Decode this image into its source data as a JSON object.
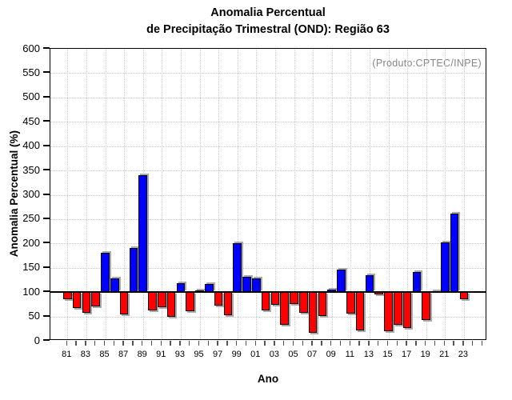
{
  "title": {
    "line1": "Anomalia Percentual",
    "line2": "de Precipitação Trimestral (OND): Região 63"
  },
  "chart_data": {
    "type": "bar",
    "title": "Anomalia Percentual de Precipitação Trimestral (OND): Região 63",
    "xlabel": "Ano",
    "ylabel": "Anomalia Percentual (%)",
    "annotation": "(Produto:CPTEC/INPE)",
    "ylim": [
      0,
      600
    ],
    "ytick_step": 50,
    "baseline": 100,
    "grid": "dotted gridlines at every 50 units and at labeled (odd) years",
    "legend": "none",
    "y_tick_labels": [
      "0",
      "50",
      "100",
      "150",
      "200",
      "250",
      "300",
      "350",
      "400",
      "450",
      "500",
      "550",
      "600"
    ],
    "x_tick_labels": [
      "81",
      "83",
      "85",
      "87",
      "89",
      "91",
      "93",
      "95",
      "97",
      "99",
      "01",
      "03",
      "05",
      "07",
      "09",
      "11",
      "13",
      "15",
      "17",
      "19",
      "21",
      "23"
    ],
    "years": [
      1981,
      1982,
      1983,
      1984,
      1985,
      1986,
      1987,
      1988,
      1989,
      1990,
      1991,
      1992,
      1993,
      1994,
      1995,
      1996,
      1997,
      1998,
      1999,
      2000,
      2001,
      2002,
      2003,
      2004,
      2005,
      2006,
      2007,
      2008,
      2009,
      2010,
      2011,
      2012,
      2013,
      2014,
      2015,
      2016,
      2017,
      2018,
      2019,
      2020,
      2021,
      2022,
      2023
    ],
    "values": [
      86,
      68,
      58,
      70,
      181,
      129,
      54,
      191,
      341,
      63,
      69,
      50,
      119,
      60,
      103,
      116,
      72,
      53,
      201,
      132,
      129,
      63,
      74,
      33,
      76,
      58,
      17,
      51,
      105,
      147,
      56,
      21,
      135,
      96,
      19,
      33,
      27,
      141,
      42,
      100,
      203,
      261,
      86
    ],
    "colors": {
      "above_baseline": "#0000ff",
      "below_baseline": "#ff0000",
      "bar_outline": "#000000",
      "bar_shadow": "#aaaaaa",
      "gridline": "#c4c4c4",
      "axis": "#000000",
      "annotation_text": "#878787"
    }
  }
}
